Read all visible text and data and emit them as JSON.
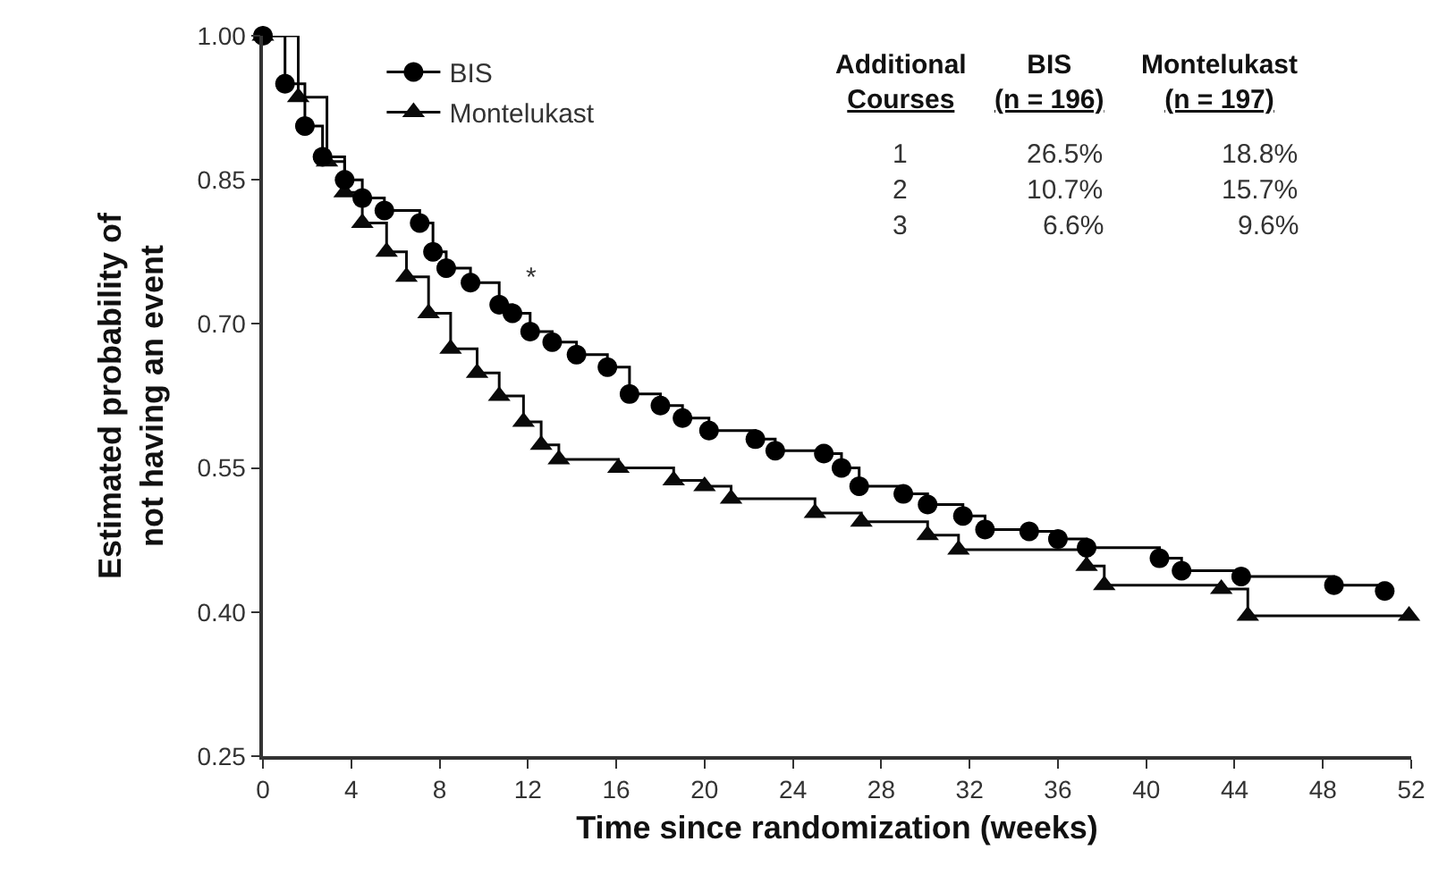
{
  "chart_data": {
    "type": "step",
    "xlabel": "Time since randomization (weeks)",
    "ylabel": "Estimated probability of\nnot having an event",
    "xlim": [
      0,
      52
    ],
    "xticks": [
      0,
      4,
      8,
      12,
      16,
      20,
      24,
      28,
      32,
      36,
      40,
      44,
      48,
      52
    ],
    "ylim": [
      0.25,
      1.0
    ],
    "yticks": [
      {
        "value": 0.25,
        "label": "0.25"
      },
      {
        "value": 0.4,
        "label": "0.40"
      },
      {
        "value": 0.55,
        "label": "0.55"
      },
      {
        "value": 0.7,
        "label": "0.70"
      },
      {
        "value": 0.85,
        "label": "0.85"
      },
      {
        "value": 1.0,
        "label": "1.00"
      }
    ],
    "grid": false,
    "legend": "top left",
    "series": [
      {
        "name": "BIS",
        "color": "#000000",
        "marker": "circle",
        "x": [
          0,
          1.0,
          1.9,
          2.7,
          3.7,
          4.5,
          5.5,
          7.1,
          7.7,
          8.3,
          9.4,
          10.7,
          11.3,
          12.1,
          13.1,
          14.2,
          15.6,
          16.6,
          18,
          19,
          20.2,
          22.3,
          23.2,
          25.4,
          26.2,
          27,
          29,
          30.1,
          31.7,
          32.7,
          34.7,
          36,
          37.3,
          40.6,
          41.6,
          44.3,
          48.5,
          50.8
        ],
        "values": [
          1.0,
          0.95,
          0.906,
          0.874,
          0.85,
          0.831,
          0.818,
          0.805,
          0.775,
          0.758,
          0.743,
          0.72,
          0.711,
          0.692,
          0.681,
          0.668,
          0.655,
          0.627,
          0.615,
          0.602,
          0.589,
          0.58,
          0.568,
          0.565,
          0.55,
          0.531,
          0.523,
          0.512,
          0.5,
          0.486,
          0.484,
          0.476,
          0.467,
          0.456,
          0.443,
          0.437,
          0.428,
          0.422
        ]
      },
      {
        "name": "Montelukast",
        "color": "#0a0a0a",
        "marker": "triangle",
        "x": [
          0,
          1.6,
          2.9,
          3.7,
          4.5,
          5.6,
          6.5,
          7.5,
          8.5,
          9.7,
          10.7,
          11.8,
          12.6,
          13.4,
          16.1,
          18.6,
          20,
          21.2,
          25,
          27.1,
          30.1,
          31.5,
          37.3,
          38.1,
          43.4,
          44.6,
          51.9
        ],
        "values": [
          1.0,
          0.936,
          0.869,
          0.837,
          0.805,
          0.775,
          0.749,
          0.711,
          0.674,
          0.649,
          0.625,
          0.598,
          0.574,
          0.559,
          0.55,
          0.537,
          0.531,
          0.518,
          0.503,
          0.494,
          0.48,
          0.465,
          0.448,
          0.428,
          0.424,
          0.396,
          0.396
        ]
      }
    ],
    "annotations": [
      "*",
      "Additional\nCourses",
      "BIS\n(n = 196)",
      "Montelukast\n(n = 197)",
      "1",
      "26.5%",
      "18.8%",
      "2",
      "10.7%",
      "15.7%",
      "3",
      "6.6%",
      "9.6%"
    ]
  }
}
